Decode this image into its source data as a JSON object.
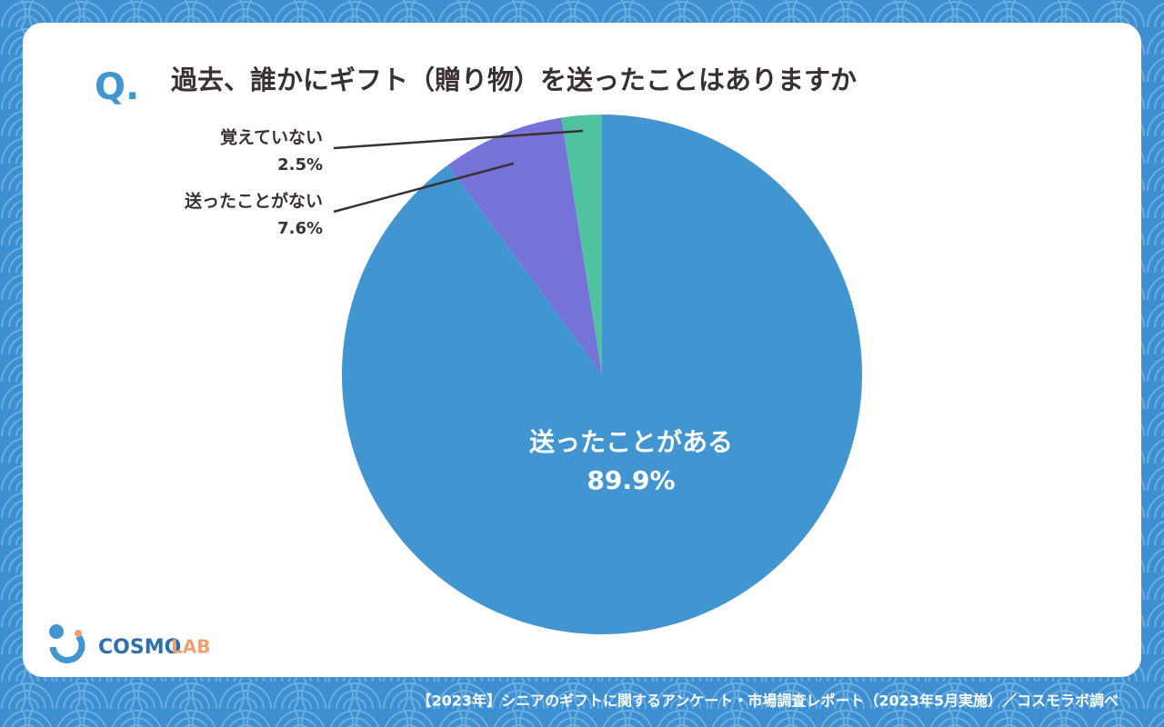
{
  "chart_data": {
    "type": "pie",
    "title_prefix": "Q.",
    "title": "過去、誰かにギフト（贈り物）を送ったことはありますか",
    "categories": [
      "送ったことがある",
      "送ったことがない",
      "覚えていない"
    ],
    "values": [
      89.9,
      7.6,
      2.5
    ],
    "value_labels": [
      "89.9%",
      "7.6%",
      "2.5%"
    ],
    "colors": [
      "#4196d2",
      "#7673d8",
      "#4fc3a0"
    ]
  },
  "logo": {
    "main": "COSMO",
    "sub": "LAB"
  },
  "footer": "【2023年】シニアのギフトに関するアンケート・市場調査レポート（2023年5月実施）／コスモラボ調べ"
}
